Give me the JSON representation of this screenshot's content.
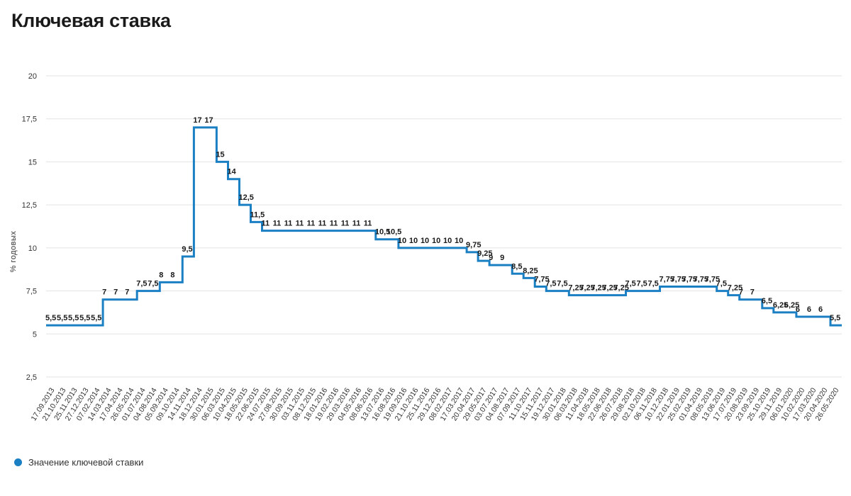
{
  "page_title": "Ключевая ставка",
  "colors": {
    "series": "#1b7fc3",
    "grid": "#e3e3e3"
  },
  "legend": {
    "label": "Значение ключевой ставки",
    "position": "bottom-left"
  },
  "chart_data": {
    "type": "line",
    "step": true,
    "title": "Ключевая ставка",
    "ylabel": "% годовых",
    "xlabel": "",
    "ylim": [
      2.5,
      20
    ],
    "yticks": [
      "2,5",
      "5",
      "7,5",
      "10",
      "12,5",
      "15",
      "17,5",
      "20"
    ],
    "ytick_values": [
      2.5,
      5,
      7.5,
      10,
      12.5,
      15,
      17.5,
      20
    ],
    "grid": true,
    "legend_position": "bottom-left",
    "x": [
      "17.09.2013",
      "21.10.2013",
      "25.11.2013",
      "27.12.2013",
      "07.02.2014",
      "14.03.2014",
      "17.04.2014",
      "26.05.2014",
      "01.07.2014",
      "04.08.2014",
      "05.09.2014",
      "09.10.2014",
      "14.11.2014",
      "18.12.2014",
      "30.01.2015",
      "06.03.2015",
      "10.04.2015",
      "18.05.2015",
      "22.06.2015",
      "24.07.2015",
      "27.08.2015",
      "30.09.2015",
      "03.11.2015",
      "08.12.2015",
      "18.01.2016",
      "19.02.2016",
      "29.03.2016",
      "04.05.2016",
      "08.06.2016",
      "13.07.2016",
      "16.08.2016",
      "19.09.2016",
      "21.10.2016",
      "25.11.2016",
      "29.12.2016",
      "08.02.2017",
      "17.03.2017",
      "20.04.2017",
      "29.05.2017",
      "03.07.2017",
      "04.08.2017",
      "07.09.2017",
      "11.10.2017",
      "15.11.2017",
      "19.12.2017",
      "30.01.2018",
      "06.03.2018",
      "11.04.2018",
      "18.05.2018",
      "22.06.2018",
      "26.07.2018",
      "29.08.2018",
      "02.10.2018",
      "06.11.2018",
      "10.12.2018",
      "22.01.2019",
      "25.02.2019",
      "01.04.2019",
      "08.05.2019",
      "13.06.2019",
      "17.07.2019",
      "20.08.2019",
      "23.09.2019",
      "25.10.2019",
      "29.11.2019",
      "06.01.2020",
      "10.02.2020",
      "17.03.2020",
      "20.04.2020",
      "26.05.2020"
    ],
    "values": [
      5.5,
      5.5,
      5.5,
      5.5,
      5.5,
      7,
      7,
      7,
      7.5,
      7.5,
      8,
      8,
      9.5,
      17,
      17,
      15,
      14,
      12.5,
      11.5,
      11,
      11,
      11,
      11,
      11,
      11,
      11,
      11,
      11,
      11,
      10.5,
      10.5,
      10,
      10,
      10,
      10,
      10,
      10,
      9.75,
      9.25,
      9,
      9,
      8.5,
      8.25,
      7.75,
      7.5,
      7.5,
      7.25,
      7.25,
      7.25,
      7.25,
      7.25,
      7.5,
      7.5,
      7.5,
      7.75,
      7.75,
      7.75,
      7.75,
      7.75,
      7.5,
      7.25,
      7,
      7,
      6.5,
      6.25,
      6.25,
      6,
      6,
      6,
      5.5
    ],
    "data_labels": [
      "5,5",
      "5,5",
      "5,5",
      "5,5",
      "5,5",
      "7",
      "7",
      "7",
      "7,5",
      "7,5",
      "8",
      "8",
      "9,5",
      "17",
      "17",
      "15",
      "14",
      "12,5",
      "11,5",
      "11",
      "11",
      "11",
      "11",
      "11",
      "11",
      "11",
      "11",
      "11",
      "11",
      "10,5",
      "10,5",
      "10",
      "10",
      "10",
      "10",
      "10",
      "10",
      "9,75",
      "9,25",
      "9",
      "9",
      "8,5",
      "8,25",
      "7,75",
      "7,5",
      "7,5",
      "7,25",
      "7,25",
      "7,25",
      "7,25",
      "7,25",
      "7,5",
      "7,5",
      "7,5",
      "7,75",
      "7,75",
      "7,75",
      "7,75",
      "7,75",
      "7,5",
      "7,25",
      "7",
      "7",
      "6,5",
      "6,25",
      "6,25",
      "6",
      "6",
      "6",
      "5,5"
    ],
    "series": [
      {
        "name": "Значение ключевой ставки"
      }
    ]
  }
}
